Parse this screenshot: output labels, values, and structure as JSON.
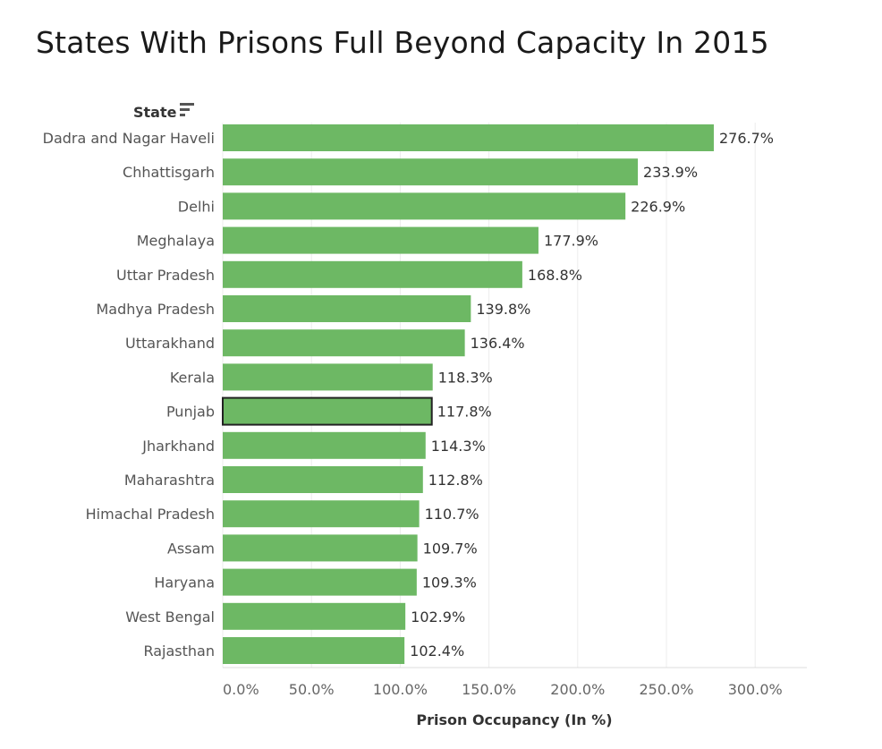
{
  "title": "States With Prisons Full Beyond Capacity In 2015",
  "sort_icon": "sort-descending-icon",
  "chart_data": {
    "type": "bar",
    "orientation": "horizontal",
    "title": "States With Prisons Full Beyond Capacity In 2015",
    "ylabel": "State",
    "xlabel": "Prison Occupancy (In %)",
    "xlim": [
      0,
      330
    ],
    "xticks": [
      0,
      50,
      100,
      150,
      200,
      250,
      300
    ],
    "xtick_labels": [
      "0.0%",
      "50.0%",
      "100.0%",
      "150.0%",
      "200.0%",
      "250.0%",
      "300.0%"
    ],
    "grid": true,
    "categories": [
      "Dadra and Nagar Haveli",
      "Chhattisgarh",
      "Delhi",
      "Meghalaya",
      "Uttar Pradesh",
      "Madhya Pradesh",
      "Uttarakhand",
      "Kerala",
      "Punjab",
      "Jharkhand",
      "Maharashtra",
      "Himachal Pradesh",
      "Assam",
      "Haryana",
      "West Bengal",
      "Rajasthan"
    ],
    "values": [
      276.7,
      233.9,
      226.9,
      177.9,
      168.8,
      139.8,
      136.4,
      118.3,
      117.8,
      114.3,
      112.8,
      110.7,
      109.7,
      109.3,
      102.9,
      102.4
    ],
    "value_labels": [
      "276.7%",
      "233.9%",
      "226.9%",
      "177.9%",
      "168.8%",
      "139.8%",
      "136.4%",
      "118.3%",
      "117.8%",
      "114.3%",
      "112.8%",
      "110.7%",
      "109.7%",
      "109.3%",
      "102.9%",
      "102.4%"
    ],
    "highlighted": "Punjab",
    "bar_color": "#6db864",
    "highlight_outline_color": "#222222"
  }
}
